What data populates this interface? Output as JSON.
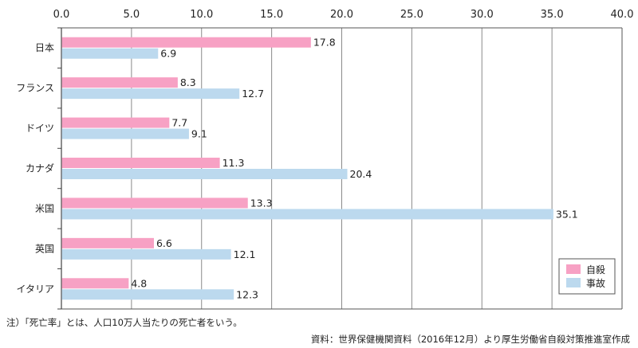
{
  "chart_data": {
    "type": "bar",
    "orientation": "horizontal",
    "categories": [
      "日本",
      "フランス",
      "ドイツ",
      "カナダ",
      "米国",
      "英国",
      "イタリア"
    ],
    "series": [
      {
        "name": "自殺",
        "values": [
          17.8,
          8.3,
          7.7,
          11.3,
          13.3,
          6.6,
          4.8
        ],
        "labels": [
          "17.8",
          "8.3",
          "7.7",
          "11.3",
          "13.3",
          "6.6",
          "4.8"
        ],
        "color": "#f7a1c4"
      },
      {
        "name": "事故",
        "values": [
          6.9,
          12.7,
          9.1,
          20.4,
          35.1,
          12.1,
          12.3
        ],
        "labels": [
          "6.9",
          "12.7",
          "9.1",
          "20.4",
          "35.1",
          "12.1",
          "12.3"
        ],
        "color": "#bcd9ee"
      }
    ],
    "xlim": [
      0,
      40
    ],
    "xticks": [
      0,
      5,
      10,
      15,
      20,
      25,
      30,
      35,
      40
    ],
    "xtick_labels": [
      "0.0",
      "5.0",
      "10.0",
      "15.0",
      "20.0",
      "25.0",
      "30.0",
      "35.0",
      "40.0"
    ],
    "xaxis_position": "top",
    "grid": true,
    "legend_position": "bottom-right"
  },
  "footer": {
    "note": "注）「死亡率」とは、人口10万人当たりの死亡者をいう。",
    "source": "資料：世界保健機関資料（2016年12月）より厚生労働省自殺対策推進室作成"
  },
  "colors": {
    "grid": "#8a8a8a",
    "axis": "#444444",
    "frame": "#555555"
  }
}
